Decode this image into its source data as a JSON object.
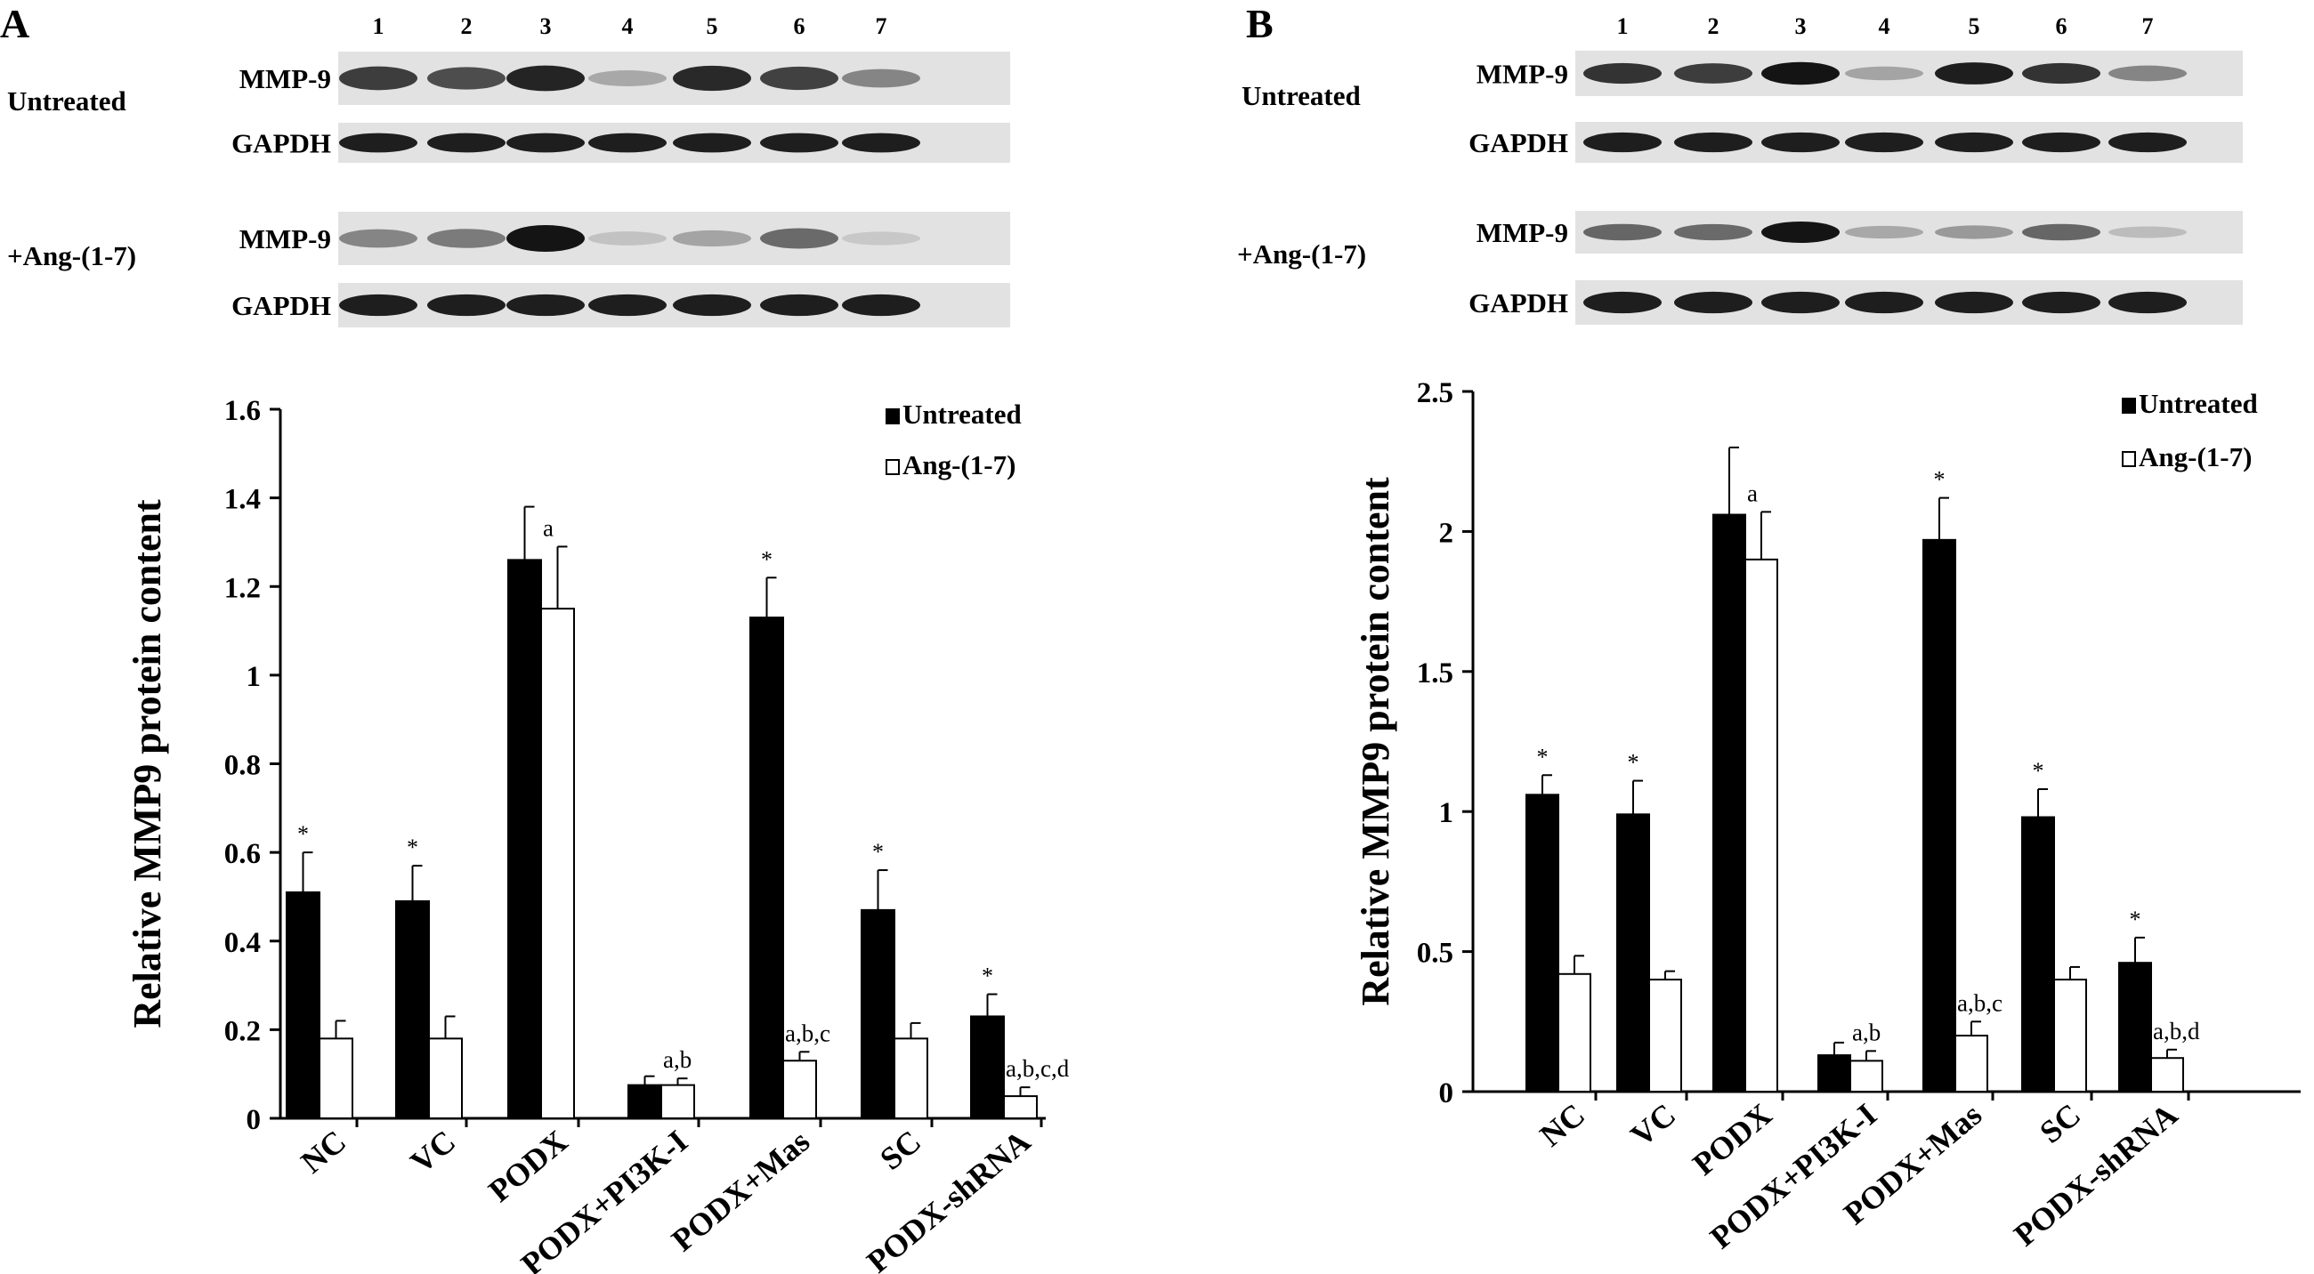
{
  "panels": [
    {
      "letter": "A",
      "lane_numbers": [
        "1",
        "2",
        "3",
        "4",
        "5",
        "6",
        "7"
      ],
      "blot_groups": [
        {
          "condition": "Untreated",
          "rows": [
            {
              "label": "MMP-9",
              "intensity": [
                0.8,
                0.72,
                0.92,
                0.28,
                0.9,
                0.78,
                0.45
              ]
            },
            {
              "label": "GAPDH",
              "intensity": [
                0.95,
                0.95,
                0.95,
                0.95,
                0.95,
                0.95,
                0.95
              ]
            }
          ]
        },
        {
          "condition": "+Ang-(1-7)",
          "rows": [
            {
              "label": "MMP-9",
              "intensity": [
                0.45,
                0.5,
                1.0,
                0.15,
                0.3,
                0.58,
                0.12
              ]
            },
            {
              "label": "GAPDH",
              "intensity": [
                0.95,
                0.95,
                0.95,
                0.95,
                0.95,
                0.95,
                0.95
              ]
            }
          ]
        }
      ],
      "chart_data": {
        "type": "bar",
        "ylabel": "Relative MMP9 protein content",
        "ylim": [
          0,
          1.6
        ],
        "yticks": [
          "0",
          "0.2",
          "0.4",
          "0.6",
          "0.8",
          "1",
          "1.2",
          "1.4",
          "1.6"
        ],
        "categories": [
          "NC",
          "VC",
          "PODX",
          "PODX+PI3K-I",
          "PODX+Mas",
          "SC",
          "PODX-shRNA"
        ],
        "legend": {
          "position": "top-right"
        },
        "series": [
          {
            "name": "Untreated",
            "color": "#000000",
            "values": [
              0.51,
              0.49,
              1.26,
              0.075,
              1.13,
              0.47,
              0.23
            ],
            "errors": [
              0.09,
              0.08,
              0.12,
              0.02,
              0.09,
              0.09,
              0.05
            ],
            "annotations": [
              "*",
              "*",
              "",
              "",
              "*",
              "*",
              "*"
            ]
          },
          {
            "name": "Ang-(1-7)",
            "color": "#ffffff",
            "values": [
              0.18,
              0.18,
              1.15,
              0.075,
              0.13,
              0.18,
              0.05
            ],
            "errors": [
              0.04,
              0.05,
              0.14,
              0.015,
              0.02,
              0.035,
              0.02
            ],
            "annotations": [
              "",
              "",
              "a",
              "a,b",
              "a,b,c",
              "",
              "a,b,c,d"
            ]
          }
        ]
      }
    },
    {
      "letter": "B",
      "lane_numbers": [
        "1",
        "2",
        "3",
        "4",
        "5",
        "6",
        "7"
      ],
      "blot_groups": [
        {
          "condition": "Untreated",
          "rows": [
            {
              "label": "MMP-9",
              "intensity": [
                0.85,
                0.8,
                1.0,
                0.3,
                0.95,
                0.85,
                0.45
              ]
            },
            {
              "label": "GAPDH",
              "intensity": [
                0.95,
                0.95,
                0.95,
                0.95,
                0.95,
                0.95,
                0.95
              ]
            }
          ]
        },
        {
          "condition": "+Ang-(1-7)",
          "rows": [
            {
              "label": "MMP-9",
              "intensity": [
                0.6,
                0.58,
                1.0,
                0.28,
                0.35,
                0.6,
                0.18
              ]
            },
            {
              "label": "GAPDH",
              "intensity": [
                0.95,
                0.95,
                0.95,
                0.95,
                0.95,
                0.95,
                0.95
              ]
            }
          ]
        }
      ],
      "chart_data": {
        "type": "bar",
        "ylabel": "Relative MMP9 protein content",
        "ylim": [
          0,
          2.5
        ],
        "yticks": [
          "0",
          "0.5",
          "1",
          "1.5",
          "2",
          "2.5"
        ],
        "categories": [
          "NC",
          "VC",
          "PODX",
          "PODX+PI3K-I",
          "PODX+Mas",
          "SC",
          "PODX-shRNA"
        ],
        "legend": {
          "position": "top-right"
        },
        "series": [
          {
            "name": "Untreated",
            "color": "#000000",
            "values": [
              1.06,
              0.99,
              2.06,
              0.13,
              1.97,
              0.98,
              0.46
            ],
            "errors": [
              0.07,
              0.12,
              0.24,
              0.045,
              0.15,
              0.1,
              0.09
            ],
            "annotations": [
              "*",
              "*",
              "",
              "",
              "*",
              "*",
              "*"
            ]
          },
          {
            "name": "Ang-(1-7)",
            "color": "#ffffff",
            "values": [
              0.42,
              0.4,
              1.9,
              0.11,
              0.2,
              0.4,
              0.12
            ],
            "errors": [
              0.065,
              0.03,
              0.17,
              0.035,
              0.05,
              0.045,
              0.03
            ],
            "annotations": [
              "",
              "",
              "a",
              "a,b",
              "a,b,c",
              "",
              "a,b,d"
            ]
          }
        ]
      }
    }
  ]
}
